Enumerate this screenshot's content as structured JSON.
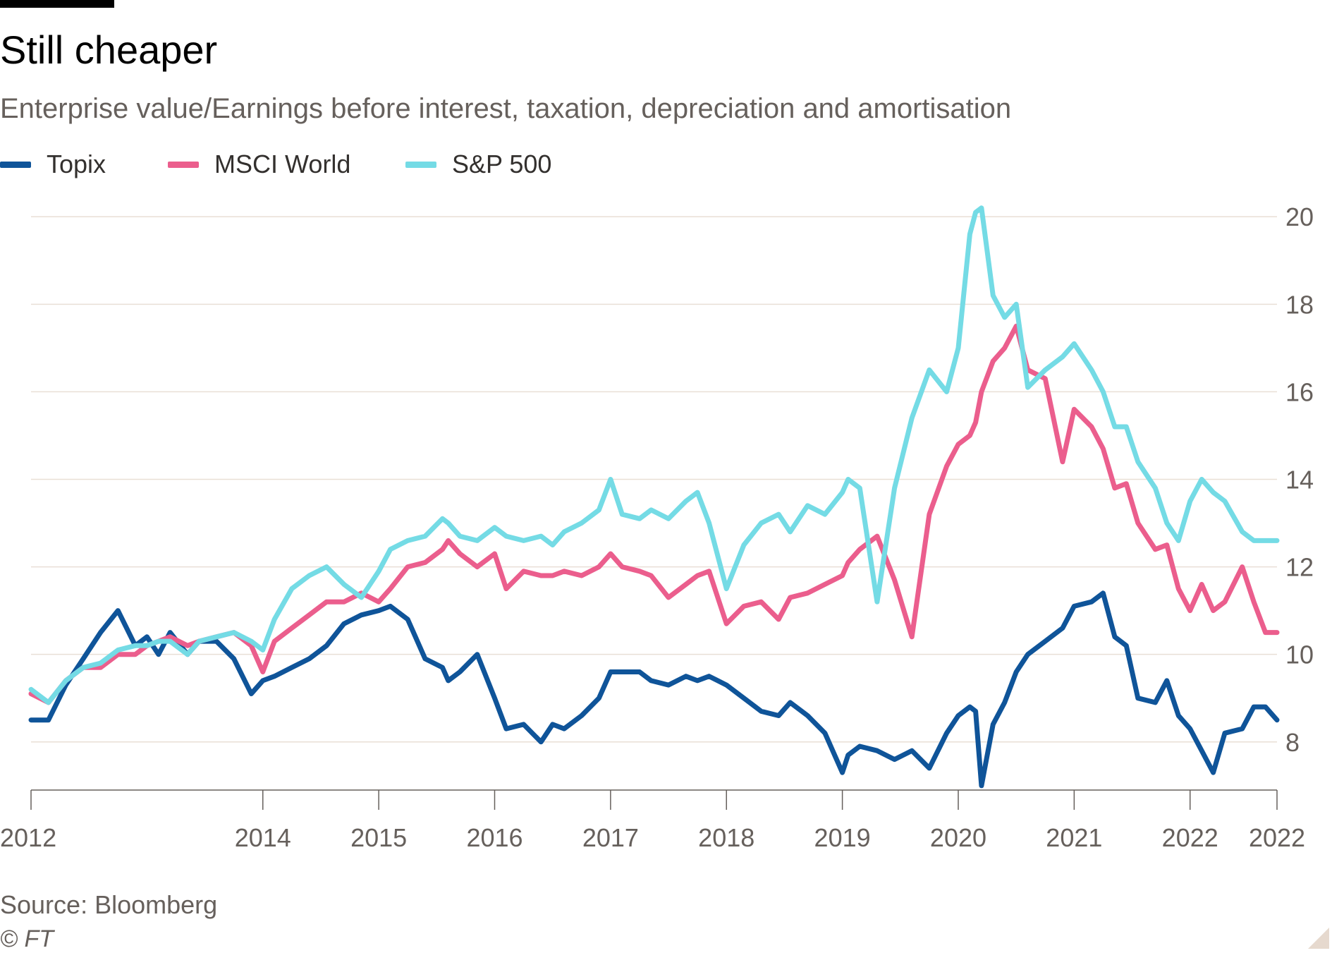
{
  "header": {
    "title": "Still cheaper",
    "subtitle": "Enterprise value/Earnings before interest, taxation, depreciation and amortisation"
  },
  "footer": {
    "source": "Source: Bloomberg",
    "copyright": "© FT"
  },
  "chart_data": {
    "type": "line",
    "title": "Still cheaper",
    "subtitle": "Enterprise value/Earnings before interest, taxation, depreciation and amortisation",
    "x_tick_labels": [
      "2012",
      "2014",
      "2015",
      "2016",
      "2017",
      "2018",
      "2019",
      "2020",
      "2021",
      "2022",
      "2022"
    ],
    "x_tick_values": [
      2012.0,
      2014.0,
      2015.0,
      2016.0,
      2017.0,
      2018.0,
      2019.0,
      2020.0,
      2021.0,
      2022.0,
      2022.75
    ],
    "xlim": [
      2012.0,
      2022.75
    ],
    "y_ticks": [
      8,
      10,
      12,
      14,
      16,
      18,
      20
    ],
    "ylim": [
      6.9,
      20.6
    ],
    "y_axis_side": "right",
    "grid": true,
    "legend_position": "top-left",
    "series": [
      {
        "name": "Topix",
        "color": "#0f5499",
        "x": [
          2012.0,
          2012.15,
          2012.3,
          2012.45,
          2012.6,
          2012.75,
          2012.9,
          2013.0,
          2013.1,
          2013.2,
          2013.35,
          2013.45,
          2013.6,
          2013.75,
          2013.9,
          2014.0,
          2014.1,
          2014.25,
          2014.4,
          2014.55,
          2014.7,
          2014.85,
          2015.0,
          2015.1,
          2015.25,
          2015.4,
          2015.55,
          2015.6,
          2015.7,
          2015.85,
          2016.0,
          2016.1,
          2016.25,
          2016.4,
          2016.5,
          2016.6,
          2016.75,
          2016.9,
          2017.0,
          2017.1,
          2017.25,
          2017.35,
          2017.5,
          2017.65,
          2017.75,
          2017.85,
          2018.0,
          2018.15,
          2018.3,
          2018.45,
          2018.55,
          2018.7,
          2018.85,
          2019.0,
          2019.05,
          2019.15,
          2019.3,
          2019.45,
          2019.6,
          2019.75,
          2019.9,
          2020.0,
          2020.1,
          2020.15,
          2020.2,
          2020.3,
          2020.4,
          2020.5,
          2020.6,
          2020.75,
          2020.9,
          2021.0,
          2021.15,
          2021.25,
          2021.35,
          2021.45,
          2021.55,
          2021.7,
          2021.8,
          2021.9,
          2022.0,
          2022.1,
          2022.2,
          2022.3,
          2022.45,
          2022.55,
          2022.65,
          2022.75
        ],
        "y": [
          8.5,
          8.5,
          9.3,
          9.9,
          10.5,
          11.0,
          10.2,
          10.4,
          10.0,
          10.5,
          10.0,
          10.3,
          10.3,
          9.9,
          9.1,
          9.4,
          9.5,
          9.7,
          9.9,
          10.2,
          10.7,
          10.9,
          11.0,
          11.1,
          10.8,
          9.9,
          9.7,
          9.4,
          9.6,
          10.0,
          9.0,
          8.3,
          8.4,
          8.0,
          8.4,
          8.3,
          8.6,
          9.0,
          9.6,
          9.6,
          9.6,
          9.4,
          9.3,
          9.5,
          9.4,
          9.5,
          9.3,
          9.0,
          8.7,
          8.6,
          8.9,
          8.6,
          8.2,
          7.3,
          7.7,
          7.9,
          7.8,
          7.6,
          7.8,
          7.4,
          8.2,
          8.6,
          8.8,
          8.7,
          7.0,
          8.4,
          8.9,
          9.6,
          10.0,
          10.3,
          10.6,
          11.1,
          11.2,
          11.4,
          10.4,
          10.2,
          9.0,
          8.9,
          9.4,
          8.6,
          8.3,
          7.8,
          7.3,
          8.2,
          8.3,
          8.8,
          8.8,
          8.5
        ]
      },
      {
        "name": "MSCI World",
        "color": "#eb5e8d",
        "x": [
          2012.0,
          2012.15,
          2012.3,
          2012.45,
          2012.6,
          2012.75,
          2012.9,
          2013.0,
          2013.1,
          2013.2,
          2013.35,
          2013.45,
          2013.6,
          2013.75,
          2013.9,
          2014.0,
          2014.1,
          2014.25,
          2014.4,
          2014.55,
          2014.7,
          2014.85,
          2015.0,
          2015.1,
          2015.25,
          2015.4,
          2015.55,
          2015.6,
          2015.7,
          2015.85,
          2016.0,
          2016.1,
          2016.25,
          2016.4,
          2016.5,
          2016.6,
          2016.75,
          2016.9,
          2017.0,
          2017.1,
          2017.25,
          2017.35,
          2017.5,
          2017.65,
          2017.75,
          2017.85,
          2018.0,
          2018.15,
          2018.3,
          2018.45,
          2018.55,
          2018.7,
          2018.85,
          2019.0,
          2019.05,
          2019.15,
          2019.3,
          2019.45,
          2019.6,
          2019.75,
          2019.9,
          2020.0,
          2020.1,
          2020.15,
          2020.2,
          2020.3,
          2020.4,
          2020.5,
          2020.6,
          2020.75,
          2020.9,
          2021.0,
          2021.15,
          2021.25,
          2021.35,
          2021.45,
          2021.55,
          2021.7,
          2021.8,
          2021.9,
          2022.0,
          2022.1,
          2022.2,
          2022.3,
          2022.45,
          2022.55,
          2022.65,
          2022.75
        ],
        "y": [
          9.1,
          8.9,
          9.4,
          9.7,
          9.7,
          10.0,
          10.0,
          10.2,
          10.3,
          10.4,
          10.2,
          10.3,
          10.4,
          10.5,
          10.2,
          9.6,
          10.3,
          10.6,
          10.9,
          11.2,
          11.2,
          11.4,
          11.2,
          11.5,
          12.0,
          12.1,
          12.4,
          12.6,
          12.3,
          12.0,
          12.3,
          11.5,
          11.9,
          11.8,
          11.8,
          11.9,
          11.8,
          12.0,
          12.3,
          12.0,
          11.9,
          11.8,
          11.3,
          11.6,
          11.8,
          11.9,
          10.7,
          11.1,
          11.2,
          10.8,
          11.3,
          11.4,
          11.6,
          11.8,
          12.1,
          12.4,
          12.7,
          11.7,
          10.4,
          13.2,
          14.3,
          14.8,
          15.0,
          15.3,
          16.0,
          16.7,
          17.0,
          17.5,
          16.5,
          16.3,
          14.4,
          15.6,
          15.2,
          14.7,
          13.8,
          13.9,
          13.0,
          12.4,
          12.5,
          11.5,
          11.0,
          11.6,
          11.0,
          11.2,
          12.0,
          11.2,
          10.5,
          10.5
        ]
      },
      {
        "name": "S&P 500",
        "color": "#74dbe5",
        "x": [
          2012.0,
          2012.15,
          2012.3,
          2012.45,
          2012.6,
          2012.75,
          2012.9,
          2013.0,
          2013.1,
          2013.2,
          2013.35,
          2013.45,
          2013.6,
          2013.75,
          2013.9,
          2014.0,
          2014.1,
          2014.25,
          2014.4,
          2014.55,
          2014.7,
          2014.85,
          2015.0,
          2015.1,
          2015.25,
          2015.4,
          2015.55,
          2015.6,
          2015.7,
          2015.85,
          2016.0,
          2016.1,
          2016.25,
          2016.4,
          2016.5,
          2016.6,
          2016.75,
          2016.9,
          2017.0,
          2017.1,
          2017.25,
          2017.35,
          2017.5,
          2017.65,
          2017.75,
          2017.85,
          2018.0,
          2018.15,
          2018.3,
          2018.45,
          2018.55,
          2018.7,
          2018.85,
          2019.0,
          2019.05,
          2019.15,
          2019.3,
          2019.45,
          2019.6,
          2019.75,
          2019.9,
          2020.0,
          2020.1,
          2020.15,
          2020.2,
          2020.3,
          2020.4,
          2020.5,
          2020.6,
          2020.75,
          2020.9,
          2021.0,
          2021.15,
          2021.25,
          2021.35,
          2021.45,
          2021.55,
          2021.7,
          2021.8,
          2021.9,
          2022.0,
          2022.1,
          2022.2,
          2022.3,
          2022.45,
          2022.55,
          2022.65,
          2022.75
        ],
        "y": [
          9.2,
          8.9,
          9.4,
          9.7,
          9.8,
          10.1,
          10.2,
          10.2,
          10.3,
          10.3,
          10.0,
          10.3,
          10.4,
          10.5,
          10.3,
          10.1,
          10.8,
          11.5,
          11.8,
          12.0,
          11.6,
          11.3,
          11.9,
          12.4,
          12.6,
          12.7,
          13.1,
          13.0,
          12.7,
          12.6,
          12.9,
          12.7,
          12.6,
          12.7,
          12.5,
          12.8,
          13.0,
          13.3,
          14.0,
          13.2,
          13.1,
          13.3,
          13.1,
          13.5,
          13.7,
          13.0,
          11.5,
          12.5,
          13.0,
          13.2,
          12.8,
          13.4,
          13.2,
          13.7,
          14.0,
          13.8,
          11.2,
          13.8,
          15.4,
          16.5,
          16.0,
          17.0,
          19.6,
          20.1,
          20.2,
          18.2,
          17.7,
          18.0,
          16.1,
          16.5,
          16.8,
          17.1,
          16.5,
          16.0,
          15.2,
          15.2,
          14.4,
          13.8,
          13.0,
          12.6,
          13.5,
          14.0,
          13.7,
          13.5,
          12.8,
          12.6,
          12.6,
          12.6
        ]
      }
    ]
  }
}
